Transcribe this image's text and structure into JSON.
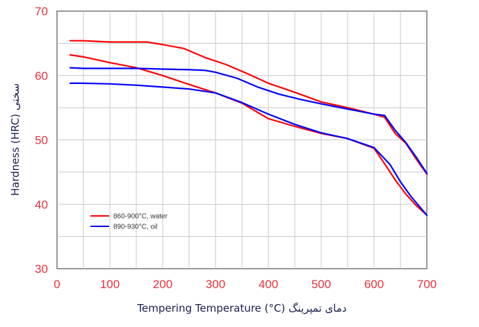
{
  "chart_data": {
    "type": "line",
    "xlabel": "Tempering Temperature (°C) دمای تمپرینگ",
    "ylabel": "Hardness (HRC) سختی",
    "xlim": [
      0,
      700
    ],
    "ylim": [
      30,
      70
    ],
    "x_ticks": [
      0,
      100,
      200,
      300,
      400,
      500,
      600,
      700
    ],
    "y_ticks": [
      30,
      40,
      50,
      60,
      70
    ],
    "grid": true,
    "legend_position": "bottom-left",
    "series": [
      {
        "name": "860-900°C, water",
        "color": "#ff0000",
        "x": [
          25,
          50,
          100,
          170,
          200,
          240,
          280,
          320,
          360,
          400,
          450,
          500,
          550,
          600,
          620,
          640,
          660,
          680,
          700
        ],
        "y": [
          65.4,
          65.4,
          65.2,
          65.2,
          64.8,
          64.2,
          62.8,
          61.7,
          60.3,
          58.8,
          57.4,
          55.9,
          55.0,
          54.0,
          53.5,
          51.0,
          49.5,
          47.0,
          44.7
        ]
      },
      {
        "name": "860-900°C, water",
        "color": "#ff0000",
        "x": [
          25,
          50,
          100,
          150,
          200,
          250,
          300,
          350,
          400,
          450,
          500,
          550,
          600,
          620,
          640,
          660,
          680,
          700
        ],
        "y": [
          63.2,
          62.9,
          62.0,
          61.2,
          60.0,
          58.6,
          57.3,
          55.7,
          53.3,
          52.1,
          51.0,
          50.2,
          48.7,
          46.3,
          43.8,
          41.6,
          39.8,
          38.3
        ]
      },
      {
        "name": "890-930°C, oil",
        "color": "#0000ff",
        "x": [
          25,
          50,
          100,
          150,
          200,
          250,
          280,
          300,
          340,
          380,
          420,
          460,
          500,
          550,
          600,
          620,
          640,
          660,
          680,
          700
        ],
        "y": [
          61.2,
          61.1,
          61.1,
          61.1,
          61.0,
          60.9,
          60.8,
          60.5,
          59.6,
          58.2,
          57.1,
          56.3,
          55.6,
          54.8,
          54.0,
          53.8,
          51.5,
          49.6,
          47.3,
          44.8
        ]
      },
      {
        "name": "890-930°C, oil",
        "color": "#0000ff",
        "x": [
          25,
          50,
          100,
          150,
          200,
          250,
          300,
          350,
          400,
          450,
          500,
          550,
          600,
          630,
          650,
          670,
          700
        ],
        "y": [
          58.8,
          58.8,
          58.7,
          58.5,
          58.2,
          57.9,
          57.3,
          55.8,
          54.0,
          52.4,
          51.1,
          50.2,
          48.8,
          46.2,
          43.5,
          41.2,
          38.3
        ]
      }
    ],
    "legend": [
      {
        "label": "860-900°C, water",
        "color": "#ff0000"
      },
      {
        "label": "890-930°C, oil",
        "color": "#0000ff"
      }
    ]
  }
}
